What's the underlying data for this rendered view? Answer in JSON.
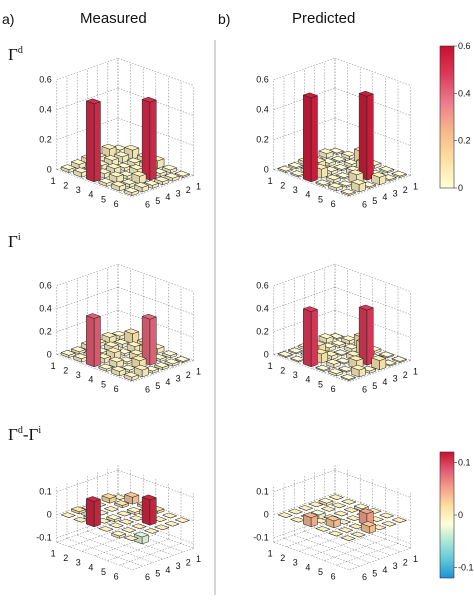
{
  "headers": {
    "measured": {
      "letter": "a)",
      "title": "Measured"
    },
    "predicted": {
      "letter": "b)",
      "title": "Predicted"
    }
  },
  "colorbars": [
    {
      "ticks": [
        "0.6",
        "0.4",
        "0.2",
        "0"
      ],
      "range": [
        0,
        0.6
      ],
      "colormap": [
        "#ffffd9",
        "#fde0a0",
        "#f7b88a",
        "#ec7d8c",
        "#dd3a5a",
        "#c8102e"
      ]
    },
    {
      "ticks": [
        "0.1",
        "0",
        "-0.1"
      ],
      "range": [
        -0.12,
        0.12
      ],
      "colormap": [
        "#1e90d8",
        "#5ec8d8",
        "#a8e6d8",
        "#ffffd9",
        "#fde0a0",
        "#f5a08a",
        "#e05a74",
        "#c8102e"
      ]
    }
  ],
  "chart_data": [
    {
      "type": "bar3d",
      "panel": "measured",
      "row": "Gd",
      "row_label": "Γ",
      "row_sup": "d",
      "zticks": [
        "0.6",
        "0.4",
        "0.2",
        "0"
      ],
      "zlim": [
        0,
        0.6
      ],
      "x_ticks": [
        "1",
        "2",
        "3",
        "4",
        "5",
        "6"
      ],
      "y_ticks": [
        "1",
        "2",
        "3",
        "4",
        "5",
        "6"
      ],
      "matrix": [
        [
          0.03,
          0.06,
          0.04,
          0.05,
          0.02,
          0.01
        ],
        [
          0.06,
          0.04,
          0.03,
          0.05,
          0.02,
          0.02
        ],
        [
          0.03,
          0.04,
          0.02,
          0.04,
          0.52,
          0.02
        ],
        [
          0.04,
          0.03,
          0.04,
          0.02,
          0.05,
          0.02
        ],
        [
          0.03,
          0.02,
          0.03,
          0.04,
          0.02,
          0.03
        ],
        [
          0.02,
          0.03,
          0.52,
          0.02,
          0.03,
          0.02
        ]
      ]
    },
    {
      "type": "bar3d",
      "panel": "predicted",
      "row": "Gd",
      "zticks": [
        "0.6",
        "0.4",
        "0.2",
        "0"
      ],
      "zlim": [
        0,
        0.6
      ],
      "x_ticks": [
        "1",
        "2",
        "3",
        "4",
        "5",
        "6"
      ],
      "y_ticks": [
        "1",
        "2",
        "3",
        "4",
        "5",
        "6"
      ],
      "matrix": [
        [
          0.01,
          0.02,
          0.08,
          0.02,
          0.01,
          0.01
        ],
        [
          0.03,
          0.01,
          0.02,
          0.06,
          0.01,
          0.01
        ],
        [
          0.01,
          0.02,
          0.01,
          0.03,
          0.56,
          0.05
        ],
        [
          0.02,
          0.05,
          0.02,
          0.01,
          0.06,
          0.01
        ],
        [
          0.01,
          0.02,
          0.06,
          0.02,
          0.01,
          0.05
        ],
        [
          0.01,
          0.01,
          0.56,
          0.01,
          0.02,
          0.01
        ]
      ]
    },
    {
      "type": "bar3d",
      "panel": "measured",
      "row": "Gi",
      "row_label": "Γ",
      "row_sup": "i",
      "zticks": [
        "0.6",
        "0.4",
        "0.2",
        "0"
      ],
      "zlim": [
        0,
        0.6
      ],
      "x_ticks": [
        "1",
        "2",
        "3",
        "4",
        "5",
        "6"
      ],
      "y_ticks": [
        "1",
        "2",
        "3",
        "4",
        "5",
        "6"
      ],
      "matrix": [
        [
          0.03,
          0.09,
          0.05,
          0.04,
          0.02,
          0.01
        ],
        [
          0.05,
          0.03,
          0.05,
          0.08,
          0.02,
          0.02
        ],
        [
          0.03,
          0.04,
          0.02,
          0.05,
          0.4,
          0.02
        ],
        [
          0.04,
          0.02,
          0.06,
          0.02,
          0.07,
          0.02
        ],
        [
          0.02,
          0.03,
          0.04,
          0.05,
          0.02,
          0.06
        ],
        [
          0.02,
          0.03,
          0.42,
          0.02,
          0.04,
          0.03
        ]
      ]
    },
    {
      "type": "bar3d",
      "panel": "predicted",
      "row": "Gi",
      "zticks": [
        "0.6",
        "0.4",
        "0.2",
        "0"
      ],
      "zlim": [
        0,
        0.6
      ],
      "x_ticks": [
        "1",
        "2",
        "3",
        "4",
        "5",
        "6"
      ],
      "y_ticks": [
        "1",
        "2",
        "3",
        "4",
        "5",
        "6"
      ],
      "matrix": [
        [
          0.01,
          0.03,
          0.1,
          0.02,
          0.01,
          0.01
        ],
        [
          0.04,
          0.02,
          0.03,
          0.12,
          0.02,
          0.01
        ],
        [
          0.01,
          0.03,
          0.01,
          0.04,
          0.48,
          0.08
        ],
        [
          0.02,
          0.08,
          0.03,
          0.01,
          0.07,
          0.02
        ],
        [
          0.01,
          0.02,
          0.08,
          0.03,
          0.01,
          0.06
        ],
        [
          0.01,
          0.01,
          0.48,
          0.01,
          0.02,
          0.01
        ]
      ]
    },
    {
      "type": "bar3d",
      "panel": "measured",
      "row": "Gdiff",
      "row_label": "Γ",
      "row_sup": "d",
      "row_label2": "-Γ",
      "row_sup2": "i",
      "zticks": [
        "0.1",
        "0",
        "-0.1"
      ],
      "zlim": [
        -0.12,
        0.12
      ],
      "x_ticks": [
        "1",
        "2",
        "3",
        "4",
        "5",
        "6"
      ],
      "y_ticks": [
        "1",
        "2",
        "3",
        "4",
        "5",
        "6"
      ],
      "matrix": [
        [
          0.0,
          0.03,
          0.01,
          0.01,
          0.0,
          0.0
        ],
        [
          0.02,
          0.01,
          -0.01,
          0.02,
          0.0,
          0.0
        ],
        [
          0.0,
          0.0,
          0.0,
          0.0,
          0.11,
          0.0
        ],
        [
          -0.03,
          0.0,
          -0.01,
          0.0,
          0.0,
          0.0
        ],
        [
          0.01,
          -0.01,
          0.0,
          0.0,
          0.0,
          -0.03
        ],
        [
          0.0,
          0.0,
          0.11,
          0.0,
          -0.01,
          0.0
        ]
      ]
    },
    {
      "type": "bar3d",
      "panel": "predicted",
      "row": "Gdiff",
      "zticks": [
        "0.1",
        "0",
        "-0.1"
      ],
      "zlim": [
        -0.12,
        0.12
      ],
      "x_ticks": [
        "1",
        "2",
        "3",
        "4",
        "5",
        "6"
      ],
      "y_ticks": [
        "1",
        "2",
        "3",
        "4",
        "5",
        "6"
      ],
      "matrix": [
        [
          0.0,
          0.0,
          -0.01,
          0.0,
          0.0,
          0.0
        ],
        [
          -0.01,
          0.0,
          0.0,
          0.0,
          0.0,
          0.0
        ],
        [
          0.0,
          0.0,
          0.0,
          0.0,
          0.05,
          0.0
        ],
        [
          0.0,
          -0.02,
          0.0,
          0.0,
          0.0,
          0.03
        ],
        [
          0.0,
          0.0,
          0.0,
          0.03,
          0.0,
          0.0
        ],
        [
          0.0,
          0.0,
          0.04,
          0.0,
          0.0,
          0.0
        ]
      ]
    }
  ]
}
